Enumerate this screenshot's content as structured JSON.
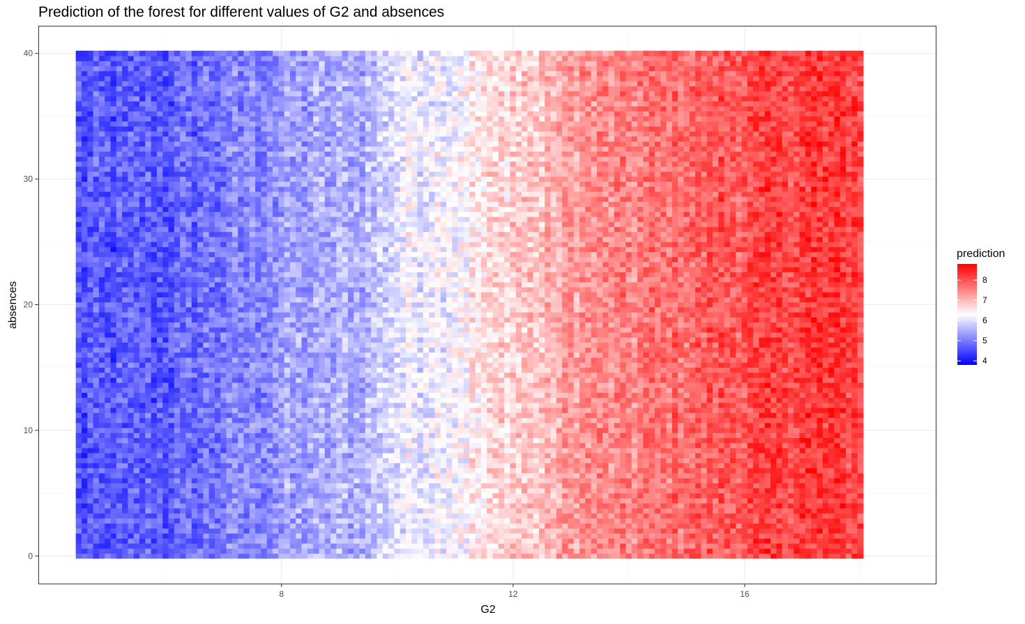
{
  "chart_data": {
    "type": "heatmap",
    "title": "Prediction of the forest for different values of G2 and absences",
    "xlabel": "G2",
    "ylabel": "absences",
    "xlim": [
      3.8,
      19.3
    ],
    "ylim": [
      -2.2,
      42.2
    ],
    "x_ticks": [
      8,
      12,
      16
    ],
    "y_ticks": [
      0,
      10,
      20,
      30,
      40
    ],
    "x_tick_labels": [
      "8",
      "12",
      "16"
    ],
    "y_tick_labels": [
      "0",
      "10",
      "20",
      "30",
      "40"
    ],
    "grid": true,
    "x_grid": {
      "from": 4.5,
      "to": 18.0,
      "step": 0.1,
      "count": 136
    },
    "y_grid": {
      "from": 0,
      "to": 40,
      "step": 0.4,
      "count": 101
    },
    "prediction_trend": {
      "G2": [
        4.5,
        6,
        8,
        9.5,
        10,
        11,
        12,
        12.5,
        13,
        14,
        15,
        16,
        17,
        18
      ],
      "prediction": [
        4.6,
        4.7,
        5.3,
        5.6,
        6.1,
        6.3,
        6.8,
        6.9,
        7.3,
        7.5,
        7.8,
        8.0,
        8.2,
        8.2
      ]
    },
    "noise_amplitude": 0.45,
    "legend": {
      "title": "prediction",
      "position": "right",
      "range": [
        3.8,
        8.8
      ],
      "ticks": [
        4,
        5,
        6,
        7,
        8
      ],
      "tick_labels": [
        "4",
        "5",
        "6",
        "7",
        "8"
      ]
    },
    "colors": {
      "low": "#0000ff",
      "mid": "#ffffff",
      "high": "#ff0000",
      "midpoint": 6.3,
      "panel_border": "#333333",
      "grid_major": "#ebebeb",
      "grid_minor": "#f5f5f5",
      "tick_label": "#4d4d4d"
    }
  }
}
